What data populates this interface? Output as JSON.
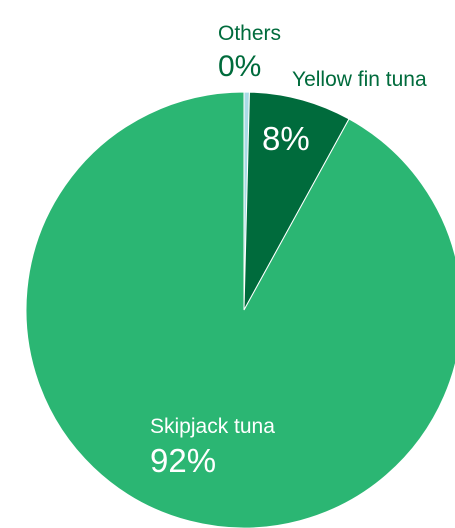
{
  "chart_data": {
    "type": "pie",
    "title": "",
    "slices": [
      {
        "label": "Others",
        "value": 0.4,
        "display": "0%",
        "color": "#a9dbe6"
      },
      {
        "label": "Yellow fin tuna",
        "value": 7.6,
        "display": "8%",
        "color": "#006b3c"
      },
      {
        "label": "Skipjack tuna",
        "value": 92,
        "display": "92%",
        "color": "#2bb673"
      }
    ],
    "legend": "none",
    "start_angle_deg": 0,
    "direction": "clockwise",
    "label_color": "#006b3c",
    "inside_label_color": "#ffffff"
  }
}
